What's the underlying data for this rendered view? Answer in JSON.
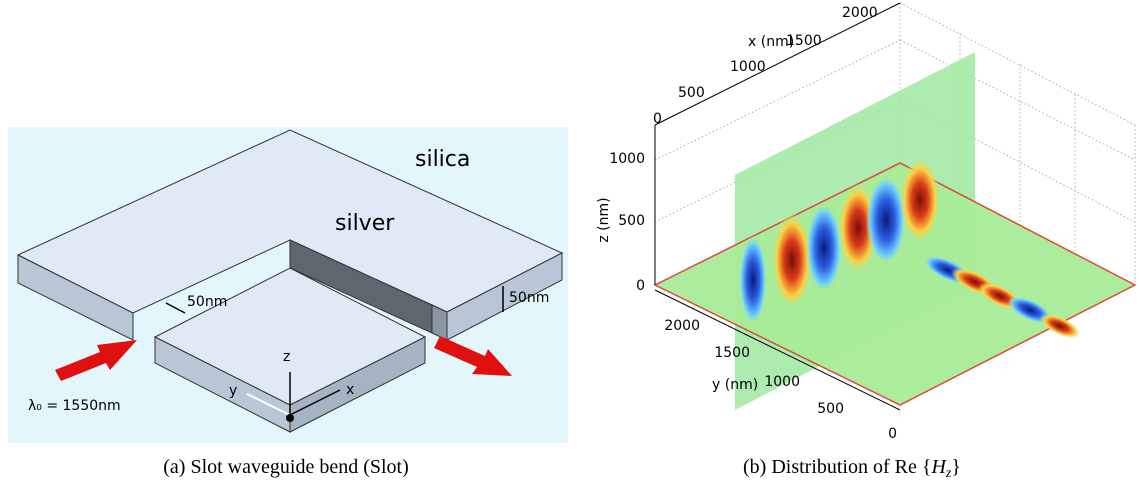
{
  "panel_a": {
    "labels": {
      "silica": "silica",
      "silver": "silver",
      "slot_width": "50nm",
      "thickness": "50nm",
      "axis_z": "z",
      "axis_y": "y",
      "axis_x": "x",
      "wavelength": "λ₀ = 1550nm"
    },
    "caption": "(a) Slot waveguide bend (Slot)"
  },
  "panel_b": {
    "x_axis": {
      "label": "x (nm)",
      "ticks": [
        "0",
        "500",
        "1000",
        "1500",
        "2000"
      ]
    },
    "z_axis": {
      "label": "z (nm)",
      "ticks": [
        "1000",
        "500",
        "0"
      ]
    },
    "y_axis": {
      "label": "y (nm)",
      "ticks": [
        "2000",
        "1500",
        "1000",
        "500",
        "0"
      ]
    },
    "caption": {
      "prefix": "(b) Distribution of Re {",
      "symbol": "H",
      "subscript": "z",
      "suffix": "}"
    }
  }
}
